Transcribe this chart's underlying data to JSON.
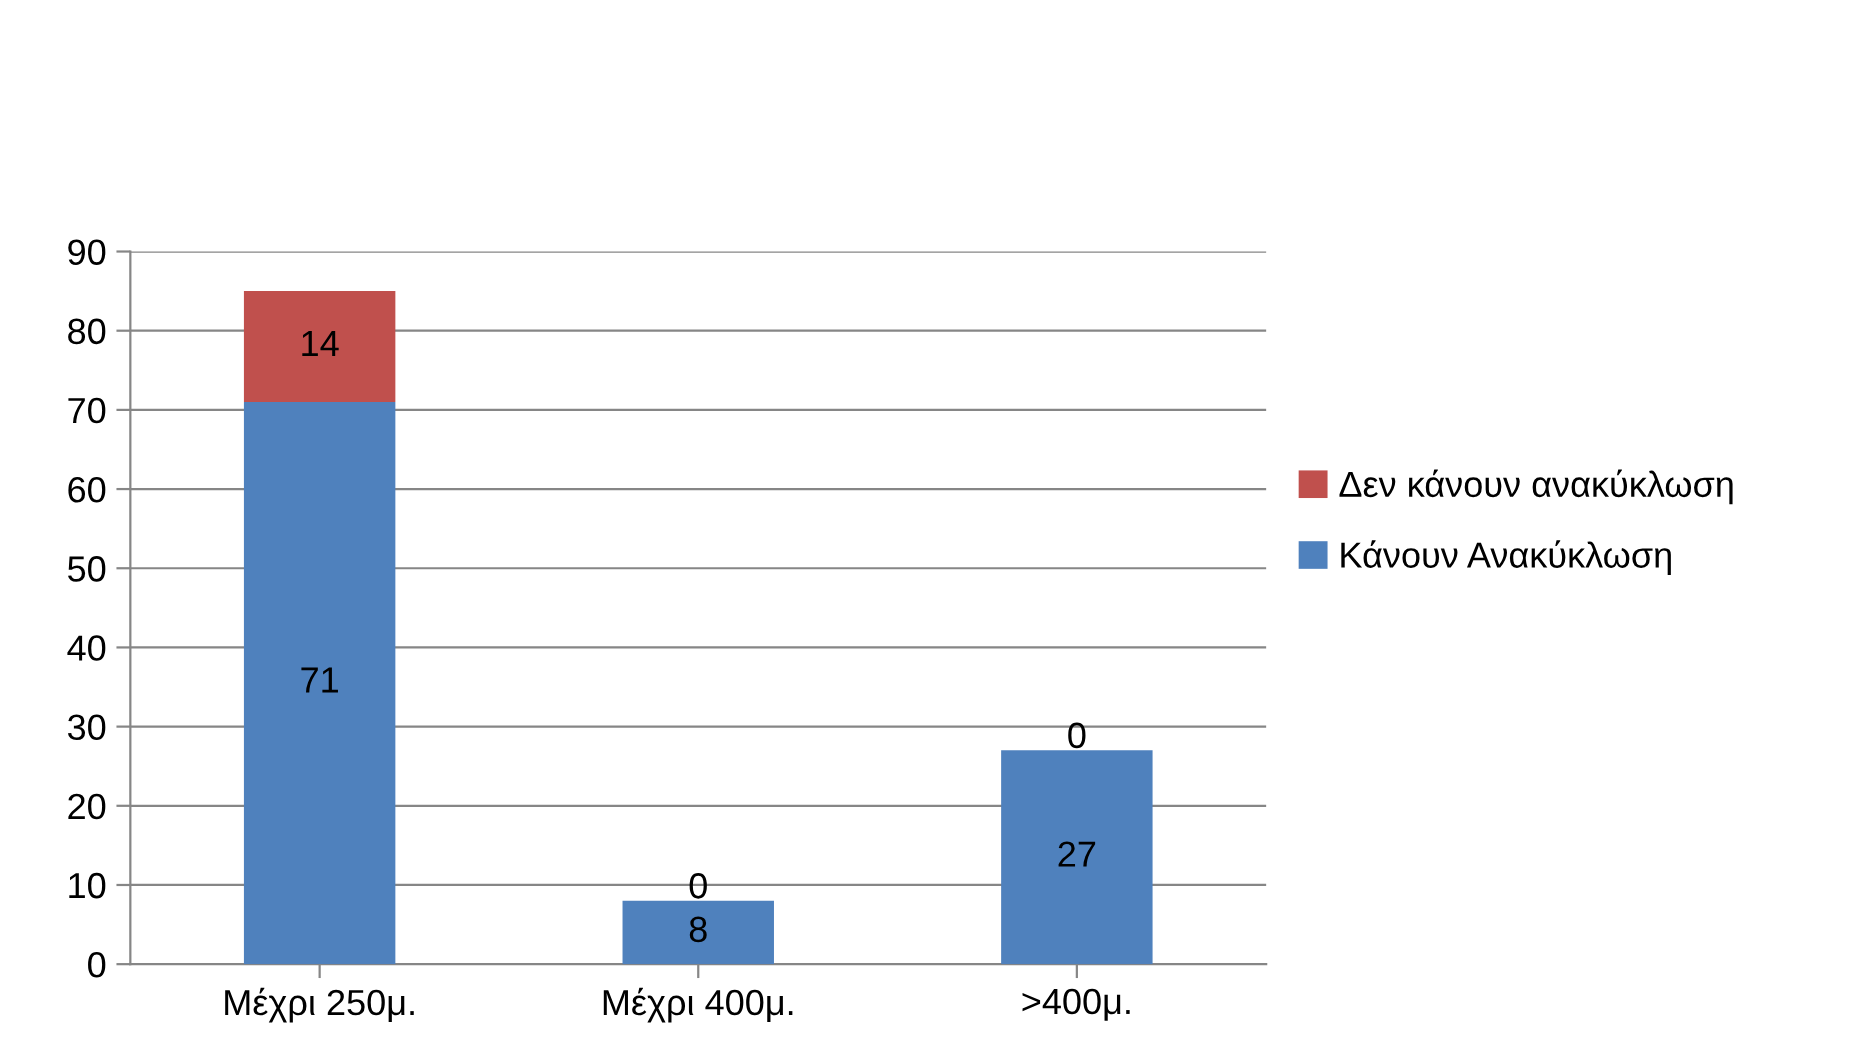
{
  "chart_data": {
    "type": "bar",
    "stacked": true,
    "categories": [
      "Μέχρι 250μ.",
      "Μέχρι 400μ.",
      ">400μ."
    ],
    "series": [
      {
        "name": "Κάνουν Ανακύκλωση",
        "color": "#4f81bd",
        "values": [
          71,
          8,
          27
        ]
      },
      {
        "name": "Δεν κάνουν ανακύκλωση",
        "color": "#c0504d",
        "values": [
          14,
          0,
          0
        ]
      }
    ],
    "ylim": [
      0,
      90
    ],
    "yticks": [
      0,
      10,
      20,
      30,
      40,
      50,
      60,
      70,
      80,
      90
    ],
    "grid": "y",
    "legend": "right",
    "data_labels": true
  }
}
